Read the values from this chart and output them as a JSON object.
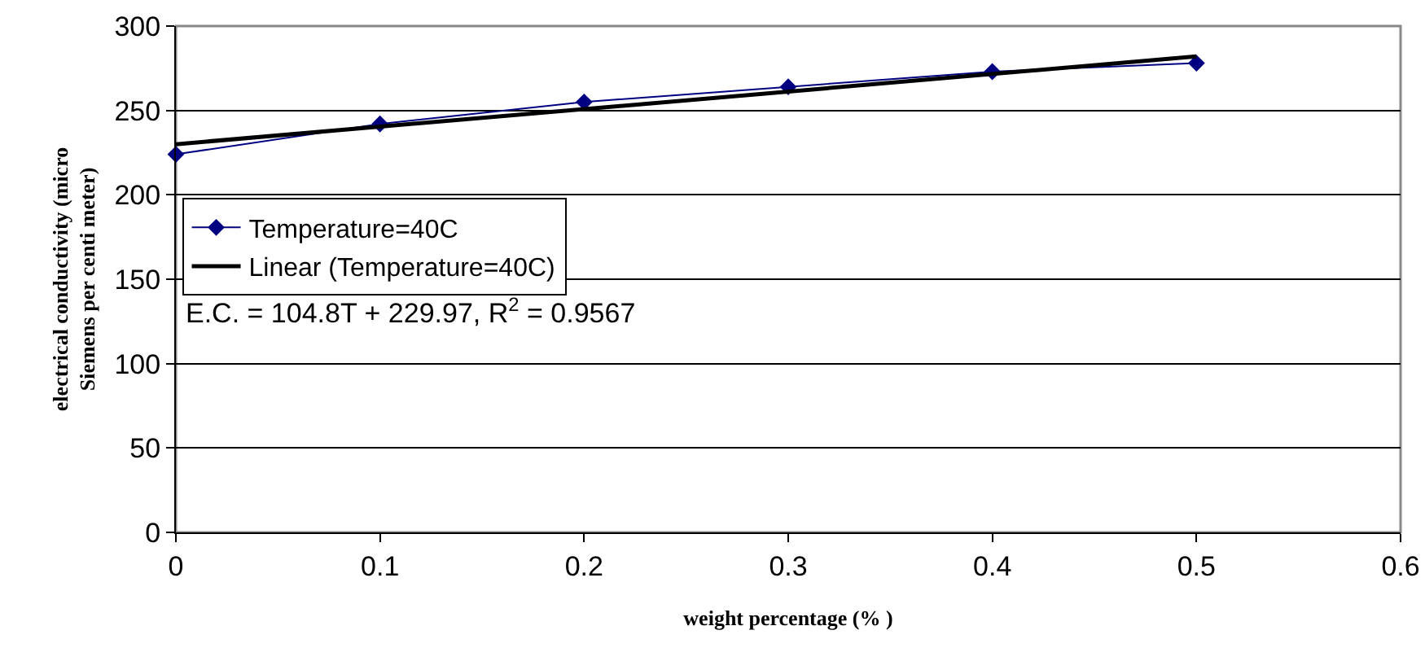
{
  "chart_data": {
    "type": "line",
    "xlabel": "weight percentage (% )",
    "ylabel": "electrical conductivity (micro Siemens per centi meter)",
    "x": [
      0,
      0.1,
      0.2,
      0.3,
      0.4,
      0.5
    ],
    "series": [
      {
        "name": "Temperature=40C",
        "color": "#000080",
        "values": [
          224,
          242,
          255,
          264,
          273,
          278
        ],
        "marker": "diamond",
        "line_style": "solid"
      },
      {
        "name": "Linear (Temperature=40C)",
        "type": "line",
        "color": "#000000",
        "x": [
          0,
          0.5
        ],
        "values": [
          230,
          282
        ],
        "marker": "none",
        "line_style": "solid"
      }
    ],
    "xlim": [
      0,
      0.6
    ],
    "xticks": [
      0,
      0.1,
      0.2,
      0.3,
      0.4,
      0.5,
      0.6
    ],
    "ylim": [
      0,
      300
    ],
    "yticks": [
      0,
      50,
      100,
      150,
      200,
      250,
      300
    ],
    "grid": "y",
    "legend": "left",
    "annotations": [
      "E.C. = 104.8T + 229.97, R$^{2}$ = 0.9567"
    ]
  }
}
